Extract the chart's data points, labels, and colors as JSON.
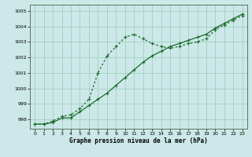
{
  "xlabel": "Graphe pression niveau de la mer (hPa)",
  "background_color": "#cce8e8",
  "grid_color": "#99ccbb",
  "line_color": "#1a6b2a",
  "x": [
    0,
    1,
    2,
    3,
    4,
    5,
    6,
    7,
    8,
    9,
    10,
    11,
    12,
    13,
    14,
    15,
    16,
    17,
    18,
    19,
    20,
    21,
    22,
    23
  ],
  "series_dotted": [
    997.7,
    997.7,
    997.9,
    998.2,
    998.3,
    998.7,
    999.3,
    1001.0,
    1002.1,
    1002.7,
    1003.3,
    1003.5,
    1003.2,
    1002.9,
    1002.7,
    1002.6,
    1002.7,
    1002.9,
    1003.0,
    1003.2,
    1003.8,
    1004.1,
    1004.4,
    1004.7
  ],
  "series_solid": [
    997.7,
    997.7,
    997.8,
    998.1,
    998.1,
    998.5,
    998.9,
    999.3,
    999.7,
    1000.2,
    1000.7,
    1001.2,
    1001.7,
    1002.1,
    1002.4,
    1002.7,
    1002.9,
    1003.1,
    1003.3,
    1003.5,
    1003.9,
    1004.2,
    1004.5,
    1004.8
  ],
  "ylim": [
    997.4,
    1005.4
  ],
  "yticks": [
    998,
    999,
    1000,
    1001,
    1002,
    1003,
    1004,
    1005
  ],
  "xticks": [
    0,
    1,
    2,
    3,
    4,
    5,
    6,
    7,
    8,
    9,
    10,
    11,
    12,
    13,
    14,
    15,
    16,
    17,
    18,
    19,
    20,
    21,
    22,
    23
  ],
  "marker": "+",
  "marker_size": 3,
  "line_width": 0.9
}
